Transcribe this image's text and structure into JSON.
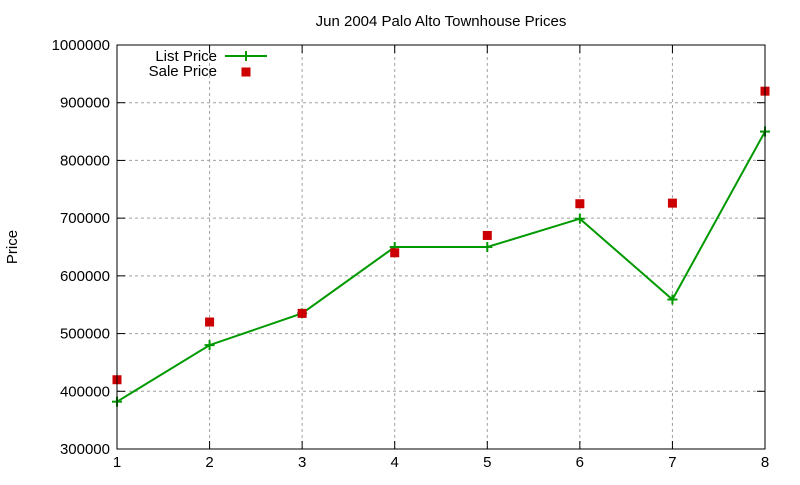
{
  "chart_data": {
    "type": "line",
    "title": "Jun 2004 Palo Alto Townhouse Prices",
    "xlabel": "",
    "ylabel": "Price",
    "x": [
      1,
      2,
      3,
      4,
      5,
      6,
      7,
      8
    ],
    "xlim": [
      1,
      8
    ],
    "ylim": [
      300000,
      1000000
    ],
    "xticks": [
      1,
      2,
      3,
      4,
      5,
      6,
      7,
      8
    ],
    "yticks": [
      300000,
      400000,
      500000,
      600000,
      700000,
      800000,
      900000,
      1000000
    ],
    "grid": true,
    "legend_position": "top-left",
    "series": [
      {
        "name": "List Price",
        "style": "linespoints",
        "marker": "plus",
        "color": "#009900",
        "values": [
          382000,
          480000,
          535000,
          650000,
          650000,
          699000,
          559000,
          850000
        ]
      },
      {
        "name": "Sale Price",
        "style": "points",
        "marker": "square",
        "color": "#cc0000",
        "values": [
          420000,
          520000,
          535000,
          640000,
          670000,
          725000,
          726000,
          920000
        ]
      }
    ]
  },
  "colors": {
    "grid": "#a0a0a0",
    "axis": "#000000",
    "background": "#ffffff"
  }
}
